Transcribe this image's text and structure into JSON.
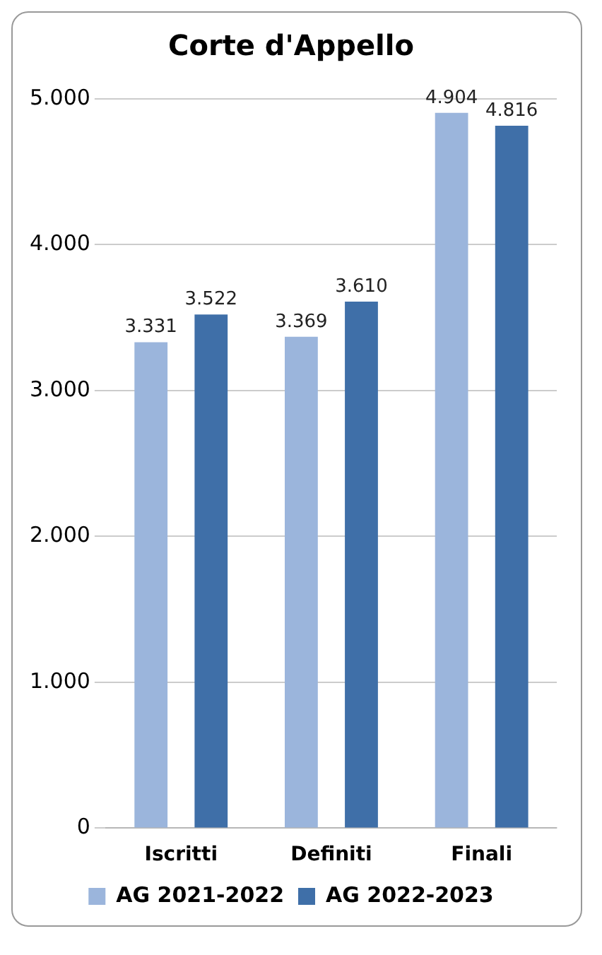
{
  "chart_data": {
    "type": "bar",
    "title": "Corte d'Appello",
    "categories": [
      "Iscritti",
      "Definiti",
      "Finali"
    ],
    "series": [
      {
        "name": "AG 2021-2022",
        "color": "#9bb5dc",
        "values": [
          3331,
          3369,
          4904
        ],
        "value_labels": [
          "3.331",
          "3.369",
          "4.904"
        ]
      },
      {
        "name": "AG 2022-2023",
        "color": "#3f6fa8",
        "values": [
          3522,
          3610,
          4816
        ],
        "value_labels": [
          "3.522",
          "3.610",
          "4.816"
        ]
      }
    ],
    "ylim": [
      0,
      5000
    ],
    "yticks": [
      {
        "value": 0,
        "label": "0"
      },
      {
        "value": 1000,
        "label": "1.000"
      },
      {
        "value": 2000,
        "label": "2.000"
      },
      {
        "value": 3000,
        "label": "3.000"
      },
      {
        "value": 4000,
        "label": "4.000"
      },
      {
        "value": 5000,
        "label": "5.000"
      }
    ],
    "grid": "y",
    "legend": "bottom"
  }
}
